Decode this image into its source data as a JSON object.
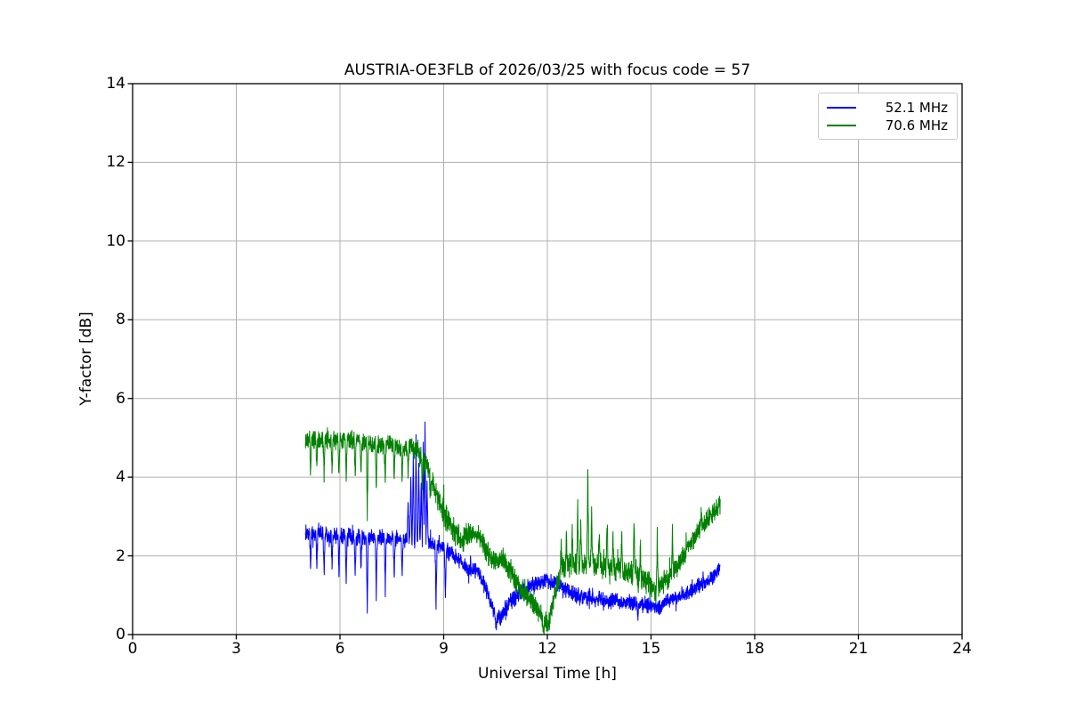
{
  "figure": {
    "background": "#ffffff"
  },
  "chart_data": {
    "type": "line",
    "title": "AUSTRIA-OE3FLB of 2026/03/25 with focus code = 57",
    "xlabel": "Universal Time [h]",
    "ylabel": "Y-factor [dB]",
    "xlim": [
      0,
      24
    ],
    "ylim": [
      0,
      14
    ],
    "x_ticks": [
      0,
      3,
      6,
      9,
      12,
      15,
      18,
      21,
      24
    ],
    "y_ticks": [
      0,
      2,
      4,
      6,
      8,
      10,
      12,
      14
    ],
    "grid": true,
    "grid_color": "#b0b0b0",
    "axis_color": "#000000",
    "legend_position": "upper right",
    "series": [
      {
        "name": "52.1 MHz",
        "color": "#0000ff",
        "x_range": [
          5.0,
          17.0
        ],
        "sample_step": 0.005,
        "seed": 7,
        "trend": [
          [
            5.0,
            2.55
          ],
          [
            5.5,
            2.55
          ],
          [
            6.0,
            2.5
          ],
          [
            6.5,
            2.5
          ],
          [
            7.0,
            2.45
          ],
          [
            7.5,
            2.45
          ],
          [
            8.0,
            2.4
          ],
          [
            8.6,
            2.35
          ],
          [
            9.0,
            2.2
          ],
          [
            9.4,
            1.95
          ],
          [
            9.7,
            1.65
          ],
          [
            10.0,
            1.6
          ],
          [
            10.25,
            1.1
          ],
          [
            10.5,
            0.45
          ],
          [
            10.65,
            0.45
          ],
          [
            10.9,
            0.8
          ],
          [
            11.2,
            1.05
          ],
          [
            11.5,
            1.2
          ],
          [
            11.9,
            1.35
          ],
          [
            12.2,
            1.35
          ],
          [
            12.5,
            1.15
          ],
          [
            12.9,
            0.95
          ],
          [
            13.5,
            0.9
          ],
          [
            14.0,
            0.85
          ],
          [
            14.5,
            0.8
          ],
          [
            14.8,
            0.75
          ],
          [
            15.2,
            0.68
          ],
          [
            15.5,
            0.85
          ],
          [
            16.0,
            1.05
          ],
          [
            16.5,
            1.3
          ],
          [
            16.8,
            1.45
          ],
          [
            17.0,
            1.7
          ]
        ],
        "noise_amp": [
          [
            5,
            0.16
          ],
          [
            8,
            0.15
          ],
          [
            9,
            0.14
          ],
          [
            10,
            0.16
          ],
          [
            10.8,
            0.18
          ],
          [
            12,
            0.15
          ],
          [
            15,
            0.14
          ],
          [
            17,
            0.15
          ]
        ],
        "spikes": [
          [
            5.15,
            -0.9
          ],
          [
            5.33,
            -0.75
          ],
          [
            5.54,
            -1.0
          ],
          [
            5.77,
            -0.85
          ],
          [
            5.97,
            -0.9
          ],
          [
            6.18,
            -1.15
          ],
          [
            6.44,
            -0.95
          ],
          [
            6.61,
            -0.8
          ],
          [
            6.79,
            -1.8
          ],
          [
            7.05,
            -1.45
          ],
          [
            7.31,
            -1.3
          ],
          [
            7.57,
            -1.0
          ],
          [
            7.8,
            -0.85
          ],
          [
            7.97,
            1.0
          ],
          [
            8.05,
            1.7
          ],
          [
            8.12,
            2.2
          ],
          [
            8.2,
            2.5
          ],
          [
            8.28,
            2.0
          ],
          [
            8.35,
            1.6
          ],
          [
            8.41,
            2.6
          ],
          [
            8.46,
            2.95
          ],
          [
            8.52,
            1.5
          ],
          [
            8.78,
            -1.6
          ],
          [
            9.05,
            -1.2
          ],
          [
            10.52,
            -0.3
          ],
          [
            14.62,
            -0.35
          ]
        ]
      },
      {
        "name": "70.6 MHz",
        "color": "#008000",
        "x_range": [
          5.0,
          17.0
        ],
        "sample_step": 0.005,
        "seed": 13,
        "trend": [
          [
            5.0,
            4.95
          ],
          [
            5.5,
            4.95
          ],
          [
            6.0,
            4.95
          ],
          [
            6.5,
            4.9
          ],
          [
            7.0,
            4.85
          ],
          [
            7.5,
            4.8
          ],
          [
            8.0,
            4.75
          ],
          [
            8.2,
            4.7
          ],
          [
            8.5,
            4.3
          ],
          [
            8.8,
            3.6
          ],
          [
            9.0,
            3.1
          ],
          [
            9.2,
            2.75
          ],
          [
            9.5,
            2.4
          ],
          [
            9.8,
            2.6
          ],
          [
            10.0,
            2.55
          ],
          [
            10.3,
            2.05
          ],
          [
            10.5,
            1.85
          ],
          [
            10.7,
            1.95
          ],
          [
            11.0,
            1.5
          ],
          [
            11.3,
            1.1
          ],
          [
            11.6,
            0.8
          ],
          [
            11.9,
            0.35
          ],
          [
            12.05,
            0.3
          ],
          [
            12.2,
            1.0
          ],
          [
            12.4,
            1.6
          ],
          [
            12.6,
            1.75
          ],
          [
            13.0,
            1.8
          ],
          [
            13.5,
            1.75
          ],
          [
            14.0,
            1.65
          ],
          [
            14.5,
            1.55
          ],
          [
            14.9,
            1.35
          ],
          [
            15.15,
            1.1
          ],
          [
            15.4,
            1.35
          ],
          [
            15.8,
            1.8
          ],
          [
            16.2,
            2.4
          ],
          [
            16.6,
            2.9
          ],
          [
            16.9,
            3.2
          ],
          [
            17.0,
            3.25
          ]
        ],
        "noise_amp": [
          [
            5,
            0.17
          ],
          [
            8,
            0.17
          ],
          [
            8.5,
            0.26
          ],
          [
            9.5,
            0.24
          ],
          [
            10,
            0.2
          ],
          [
            11,
            0.22
          ],
          [
            12,
            0.2
          ],
          [
            12.5,
            0.24
          ],
          [
            15,
            0.22
          ],
          [
            15.5,
            0.2
          ],
          [
            17,
            0.2
          ]
        ],
        "spikes": [
          [
            5.15,
            -0.85
          ],
          [
            5.33,
            -0.7
          ],
          [
            5.54,
            -0.95
          ],
          [
            5.77,
            -0.8
          ],
          [
            5.97,
            -0.85
          ],
          [
            6.18,
            -1.0
          ],
          [
            6.44,
            -0.9
          ],
          [
            6.61,
            -0.75
          ],
          [
            6.79,
            -1.75
          ],
          [
            7.05,
            -1.1
          ],
          [
            7.31,
            -0.95
          ],
          [
            7.57,
            -0.85
          ],
          [
            7.8,
            -0.8
          ],
          [
            7.97,
            -0.7
          ],
          [
            8.38,
            -0.6
          ],
          [
            8.62,
            -0.5
          ],
          [
            11.88,
            -0.3
          ],
          [
            12.02,
            -0.28
          ],
          [
            12.4,
            0.7
          ],
          [
            12.55,
            0.85
          ],
          [
            12.72,
            0.85
          ],
          [
            12.88,
            1.5
          ],
          [
            12.97,
            1.1
          ],
          [
            13.17,
            2.5
          ],
          [
            13.28,
            1.4
          ],
          [
            13.5,
            0.8
          ],
          [
            13.73,
            1.2
          ],
          [
            13.9,
            0.85
          ],
          [
            14.15,
            0.95
          ],
          [
            14.51,
            1.35
          ],
          [
            14.69,
            0.95
          ],
          [
            15.18,
            1.4
          ],
          [
            15.62,
            1.1
          ],
          [
            16.45,
            0.5
          ]
        ]
      }
    ]
  }
}
